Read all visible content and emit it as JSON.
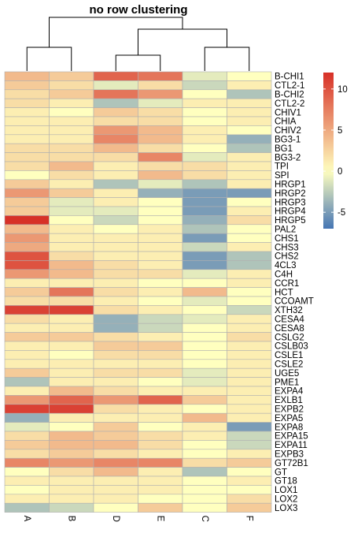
{
  "chart_data": {
    "type": "heatmap",
    "title": "no row clustering",
    "columns": [
      "A",
      "B",
      "D",
      "E",
      "C",
      "F"
    ],
    "column_dendrogram": "((A,B),((D,E),(C,F)))",
    "rows": [
      "B-CHI1",
      "CTL2-1",
      "B-CHI2",
      "CTL2-2",
      "CHIV1",
      "CHIA",
      "CHIV2",
      "BG3-1",
      "BG1",
      "BG3-2",
      "TPI",
      "SPI",
      "HRGP1",
      "HRGP2",
      "HRGP3",
      "HRGP4",
      "HRGP5",
      "PAL2",
      "CHS1",
      "CHS3",
      "CHS2",
      "4CL3",
      "C4H",
      "CCR1",
      "HCT",
      "CCOAMT",
      "XTH32",
      "CESA4",
      "CESA8",
      "CSLG2",
      "CSLB03",
      "CSLE1",
      "CSLE2",
      "UGE5",
      "PME1",
      "EXPA4",
      "EXLB1",
      "EXPB2",
      "EXPA5",
      "EXPA8",
      "EXPA15",
      "EXPA11",
      "EXPB3",
      "GT72B1",
      "GT",
      "GT18",
      "LOX1",
      "LOX2",
      "LOX3"
    ],
    "values": [
      [
        4,
        3,
        9,
        8,
        -1,
        0
      ],
      [
        3,
        2,
        -1,
        2,
        -2,
        1
      ],
      [
        2,
        3,
        8,
        6,
        0,
        -3
      ],
      [
        2,
        1,
        -3,
        -1,
        1,
        1
      ],
      [
        1,
        0,
        3,
        2,
        0,
        1
      ],
      [
        1,
        1,
        2,
        2,
        0,
        1
      ],
      [
        1,
        1,
        6,
        4,
        1,
        0
      ],
      [
        1,
        1,
        7,
        4,
        1,
        -4
      ],
      [
        2,
        2,
        4,
        2,
        0,
        -3
      ],
      [
        2,
        2,
        2,
        7,
        -1,
        1
      ],
      [
        2,
        4,
        1,
        2,
        2,
        1
      ],
      [
        0,
        2,
        1,
        4,
        2,
        1
      ],
      [
        3,
        1,
        -3,
        -1,
        -3,
        1
      ],
      [
        6,
        3,
        1,
        -4,
        -5,
        -5
      ],
      [
        3,
        -1,
        1,
        0,
        -5,
        0
      ],
      [
        3,
        -1,
        -1,
        0,
        -5,
        1
      ],
      [
        12,
        0,
        -2,
        0,
        -4,
        2
      ],
      [
        4,
        1,
        0,
        1,
        -3,
        0
      ],
      [
        6,
        1,
        1,
        1,
        -5,
        0
      ],
      [
        5,
        1,
        1,
        1,
        -2,
        1
      ],
      [
        10,
        2,
        1,
        1,
        -5,
        -3
      ],
      [
        10,
        4,
        2,
        1,
        -5,
        -3
      ],
      [
        6,
        4,
        2,
        2,
        -1,
        1
      ],
      [
        1,
        1,
        1,
        0,
        0,
        1
      ],
      [
        3,
        8,
        2,
        1,
        4,
        0
      ],
      [
        2,
        2,
        1,
        0,
        -1,
        0
      ],
      [
        11,
        11,
        2,
        1,
        0,
        -2
      ],
      [
        2,
        1,
        -4,
        -2,
        -1,
        1
      ],
      [
        1,
        1,
        -4,
        -2,
        0,
        1
      ],
      [
        3,
        3,
        2,
        1,
        0,
        2
      ],
      [
        1,
        1,
        3,
        3,
        0,
        1
      ],
      [
        1,
        0,
        2,
        2,
        0,
        1
      ],
      [
        1,
        1,
        1,
        1,
        0,
        1
      ],
      [
        3,
        1,
        2,
        2,
        -1,
        1
      ],
      [
        -3,
        1,
        1,
        0,
        -1,
        1
      ],
      [
        1,
        4,
        2,
        1,
        1,
        1
      ],
      [
        6,
        9,
        6,
        9,
        3,
        1
      ],
      [
        11,
        11,
        2,
        1,
        0,
        1
      ],
      [
        -4,
        1,
        1,
        1,
        4,
        1
      ],
      [
        -1,
        0,
        3,
        0,
        1,
        -5
      ],
      [
        2,
        4,
        3,
        2,
        1,
        -2
      ],
      [
        3,
        4,
        4,
        2,
        0,
        -2
      ],
      [
        2,
        3,
        2,
        1,
        0,
        1
      ],
      [
        7,
        6,
        7,
        7,
        2,
        3
      ],
      [
        0,
        2,
        4,
        1,
        -3,
        0
      ],
      [
        1,
        1,
        1,
        1,
        0,
        1
      ],
      [
        0,
        1,
        1,
        1,
        0,
        0
      ],
      [
        1,
        1,
        1,
        0,
        0,
        2
      ],
      [
        -3,
        -2,
        0,
        3,
        0,
        3
      ]
    ],
    "legend": {
      "ticks": [
        10,
        5,
        0,
        -5
      ],
      "range": [
        -7,
        12
      ]
    },
    "colors": {
      "low": "#4575b4",
      "mid": "#ffffbf",
      "high": "#d73027",
      "cell_border": "#b0b0b0",
      "dendrogram": "#000000"
    }
  }
}
